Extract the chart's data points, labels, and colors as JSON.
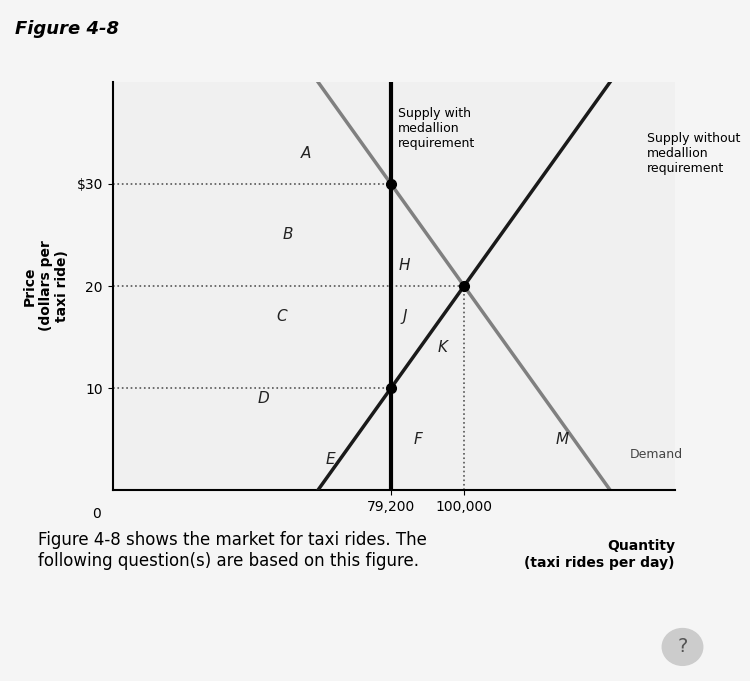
{
  "title": "Figure 4-8",
  "ylabel": "Price\n(dollars per\ntaxi ride)",
  "xlabel_quantity": "Quantity\n(taxi rides per day)",
  "x_medallion": 79200,
  "x_eq": 100000,
  "price_high": 30,
  "price_mid": 20,
  "price_low": 10,
  "xlim": [
    0,
    160000
  ],
  "ylim": [
    0,
    40
  ],
  "yticks": [
    10,
    20,
    30
  ],
  "ytick_labels": [
    "10",
    "20",
    "$30"
  ],
  "xticks": [
    79200,
    100000
  ],
  "xtick_labels": [
    "79,200",
    "100,000"
  ],
  "supply_medallion_label": "Supply with\nmedallion\nrequirement",
  "supply_no_medallion_label": "Supply without\nmedallion\nrequirement",
  "demand_label": "Demand",
  "caption": "Figure 4-8 shows the market for taxi rides. The\nfollowing question(s) are based on this figure.",
  "region_labels": [
    "A",
    "B",
    "C",
    "D",
    "E",
    "H",
    "J",
    "K",
    "F",
    "M"
  ],
  "region_x": [
    55000,
    50000,
    48000,
    43000,
    62000,
    83000,
    83000,
    94000,
    87000,
    128000
  ],
  "region_y": [
    33,
    25,
    17,
    9,
    3,
    22,
    17,
    14,
    5,
    5
  ],
  "background_color": "#f0f0f0",
  "line_color_supply_medallion": "#000000",
  "line_color_supply_no_medallion": "#333333",
  "line_color_demand": "#888888",
  "dot_color": "#000000",
  "dotted_line_color": "#555555",
  "fig_width": 7.5,
  "fig_height": 6.81
}
